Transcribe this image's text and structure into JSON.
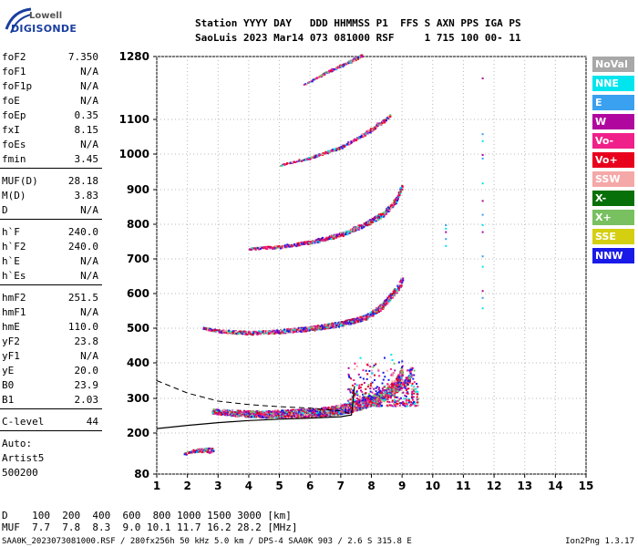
{
  "logo": {
    "top": "Lowell",
    "bottom": "DIGISONDE"
  },
  "header": {
    "line1": "Station YYYY DAY   DDD HHMMSS P1  FFS S AXN PPS IGA PS",
    "line2": "SaoLuis 2023 Mar14 073 081000 RSF     1 715 100 00- 11"
  },
  "params": [
    {
      "label": "foF2",
      "value": "7.350"
    },
    {
      "label": "foF1",
      "value": "N/A"
    },
    {
      "label": "foF1p",
      "value": "N/A"
    },
    {
      "label": "foE",
      "value": "N/A"
    },
    {
      "label": "foEp",
      "value": "0.35"
    },
    {
      "label": "fxI",
      "value": "8.15"
    },
    {
      "label": "foEs",
      "value": "N/A"
    },
    {
      "label": "fmin",
      "value": "3.45"
    },
    {
      "label": "MUF(D)",
      "value": "28.18"
    },
    {
      "label": "M(D)",
      "value": "3.83"
    },
    {
      "label": "D",
      "value": "N/A"
    },
    {
      "label": "h`F",
      "value": "240.0"
    },
    {
      "label": "h`F2",
      "value": "240.0"
    },
    {
      "label": "h`E",
      "value": "N/A"
    },
    {
      "label": "h`Es",
      "value": "N/A"
    },
    {
      "label": "hmF2",
      "value": "251.5"
    },
    {
      "label": "hmF1",
      "value": "N/A"
    },
    {
      "label": "hmE",
      "value": "110.0"
    },
    {
      "label": "yF2",
      "value": "23.8"
    },
    {
      "label": "yF1",
      "value": "N/A"
    },
    {
      "label": "yE",
      "value": "20.0"
    },
    {
      "label": "B0",
      "value": "23.9"
    },
    {
      "label": "B1",
      "value": "2.03"
    },
    {
      "label": "C-level",
      "value": "44"
    },
    {
      "label": "Auto:",
      "value": ""
    },
    {
      "label": "Artist5",
      "value": ""
    },
    {
      "label": "500200",
      "value": ""
    }
  ],
  "legend": [
    {
      "label": "NoVal",
      "color": "#a8a8a8"
    },
    {
      "label": "NNE",
      "color": "#00e5ee"
    },
    {
      "label": "E",
      "color": "#3aa0f0"
    },
    {
      "label": "W",
      "color": "#b0089f"
    },
    {
      "label": "Vo-",
      "color": "#f0208a"
    },
    {
      "label": "Vo+",
      "color": "#e8001c"
    },
    {
      "label": "SSW",
      "color": "#f5a8a8"
    },
    {
      "label": "X-",
      "color": "#087008"
    },
    {
      "label": "X+",
      "color": "#78c060"
    },
    {
      "label": "SSE",
      "color": "#d4cf10"
    },
    {
      "label": "NNW",
      "color": "#1a1ae8"
    }
  ],
  "muf_table": {
    "row1": "D    100  200  400  600  800 1000 1500 3000 [km]",
    "row2": "MUF  7.7  7.8  8.3  9.0 10.1 11.7 16.2 28.2 [MHz]"
  },
  "footer": "SAA0K_2023073081000.RSF / 280fx256h 50 kHz 5.0 km / DPS-4 SAA0K 903 / 2.6 S 315.8 E",
  "version": "Ion2Png 1.3.17",
  "chart_data": {
    "type": "scatter",
    "xlim": [
      1,
      15
    ],
    "ylim": [
      80,
      1300
    ],
    "x_ticks": [
      1,
      2,
      3,
      4,
      5,
      6,
      7,
      8,
      9,
      10,
      11,
      12,
      13,
      14,
      15
    ],
    "y_ticks": [
      80,
      200,
      300,
      400,
      500,
      600,
      700,
      800,
      900,
      1000,
      1100,
      1280
    ],
    "traces": [
      {
        "name": "o-trace F2 1st hop",
        "points": [
          [
            2.8,
            262
          ],
          [
            3.5,
            256
          ],
          [
            4.5,
            252
          ],
          [
            5.5,
            254
          ],
          [
            6.2,
            256
          ],
          [
            6.8,
            262
          ],
          [
            7.2,
            268
          ],
          [
            7.6,
            278
          ],
          [
            8.0,
            290
          ],
          [
            8.4,
            305
          ],
          [
            8.7,
            325
          ],
          [
            8.9,
            350
          ],
          [
            9.0,
            380
          ]
        ]
      },
      {
        "name": "x-trace F2 1st hop",
        "points": [
          [
            7.6,
            275
          ],
          [
            8.0,
            290
          ],
          [
            8.5,
            305
          ],
          [
            8.9,
            330
          ],
          [
            9.2,
            350
          ],
          [
            9.3,
            380
          ]
        ]
      },
      {
        "name": "F2 2nd hop",
        "points": [
          [
            2.5,
            500
          ],
          [
            3.0,
            492
          ],
          [
            4.0,
            486
          ],
          [
            5.0,
            490
          ],
          [
            6.0,
            498
          ],
          [
            7.0,
            512
          ],
          [
            7.8,
            530
          ],
          [
            8.3,
            560
          ],
          [
            8.6,
            590
          ],
          [
            8.9,
            620
          ],
          [
            9.0,
            640
          ]
        ]
      },
      {
        "name": "F2 3rd hop",
        "points": [
          [
            4.0,
            730
          ],
          [
            5.0,
            735
          ],
          [
            6.0,
            748
          ],
          [
            7.0,
            770
          ],
          [
            7.8,
            800
          ],
          [
            8.4,
            830
          ],
          [
            8.8,
            870
          ],
          [
            9.0,
            910
          ]
        ]
      },
      {
        "name": "F2 4th hop",
        "points": [
          [
            5.0,
            970
          ],
          [
            6.0,
            990
          ],
          [
            7.0,
            1020
          ],
          [
            7.8,
            1060
          ],
          [
            8.6,
            1110
          ]
        ]
      },
      {
        "name": "F2 5th hop",
        "points": [
          [
            5.8,
            1200
          ],
          [
            6.5,
            1235
          ],
          [
            7.2,
            1262
          ],
          [
            7.7,
            1285
          ]
        ]
      },
      {
        "name": "low echoes",
        "points": [
          [
            1.9,
            140
          ],
          [
            2.2,
            148
          ],
          [
            2.5,
            150
          ],
          [
            2.8,
            148
          ]
        ]
      }
    ],
    "profile_solid": [
      [
        1.0,
        213
      ],
      [
        2.0,
        222
      ],
      [
        3.0,
        230
      ],
      [
        4.0,
        236
      ],
      [
        5.0,
        240
      ],
      [
        6.0,
        243
      ],
      [
        7.0,
        247
      ],
      [
        7.35,
        252
      ],
      [
        7.45,
        335
      ]
    ],
    "profile_dashed": [
      [
        1.0,
        350
      ],
      [
        2.0,
        315
      ],
      [
        3.0,
        292
      ],
      [
        4.0,
        282
      ],
      [
        5.0,
        276
      ],
      [
        6.0,
        272
      ],
      [
        7.0,
        264
      ],
      [
        7.35,
        255
      ]
    ],
    "vertical_bars": [
      {
        "x": 10.4,
        "ys": [
          740,
          760,
          780,
          790,
          800
        ]
      },
      {
        "x": 11.6,
        "ys": [
          560,
          590,
          610,
          680,
          710,
          780,
          800,
          830,
          870,
          920,
          990,
          1000,
          1040,
          1060,
          1220
        ]
      }
    ]
  }
}
